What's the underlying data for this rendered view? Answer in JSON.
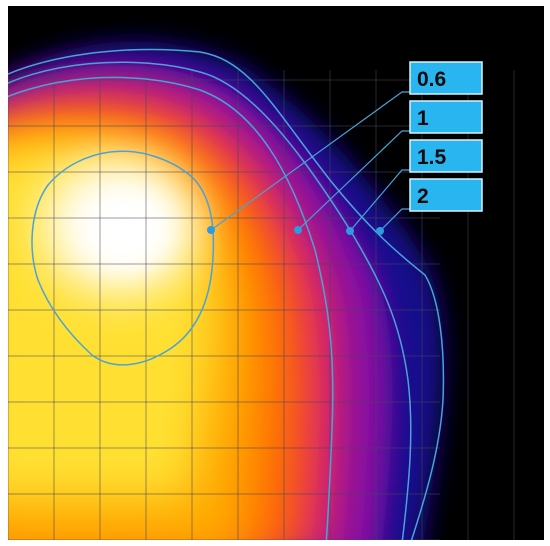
{
  "chart_data": {
    "type": "heatmap",
    "title": "",
    "xlabel": "",
    "ylabel": "",
    "colormap": [
      "#000000",
      "#1a0a8a",
      "#7a0aa0",
      "#e02070",
      "#ff6a00",
      "#ffb000",
      "#ffee30",
      "#ffffff"
    ],
    "grid": true,
    "contour_color": "#4aa3d8",
    "label_box_color": "#29b6f0",
    "contour_levels": [
      {
        "label": "0.6",
        "value": 0.6
      },
      {
        "label": "1",
        "value": 1
      },
      {
        "label": "1.5",
        "value": 1.5
      },
      {
        "label": "2",
        "value": 2
      }
    ]
  }
}
